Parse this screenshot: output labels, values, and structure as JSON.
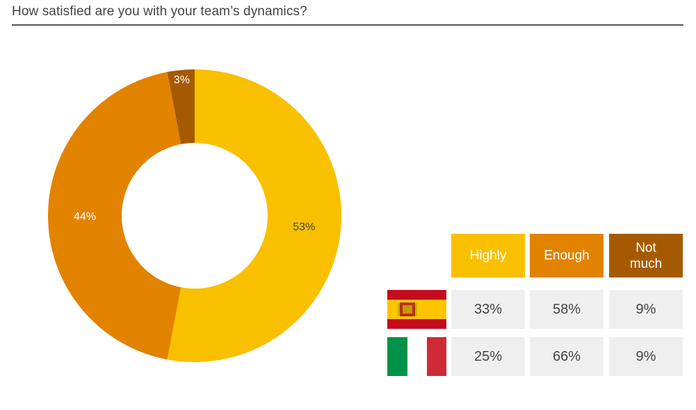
{
  "title": "How satisfied are you with your team’s dynamics?",
  "colors": {
    "highly": "#f9c000",
    "enough": "#e28300",
    "not_much": "#a65a00",
    "cell_bg": "#efefef"
  },
  "chart_data": [
    {
      "type": "pie",
      "categories": [
        "Highly",
        "Enough",
        "Not much"
      ],
      "values": [
        53,
        44,
        3
      ],
      "labels": [
        "53%",
        "44%",
        "3%"
      ]
    },
    {
      "type": "table",
      "columns": [
        "Highly",
        "Enough",
        "Not much"
      ],
      "rows": [
        {
          "flag": "spain-flag-icon",
          "values": [
            "33%",
            "58%",
            "9%"
          ]
        },
        {
          "flag": "italy-flag-icon",
          "values": [
            "25%",
            "66%",
            "9%"
          ]
        }
      ]
    }
  ]
}
